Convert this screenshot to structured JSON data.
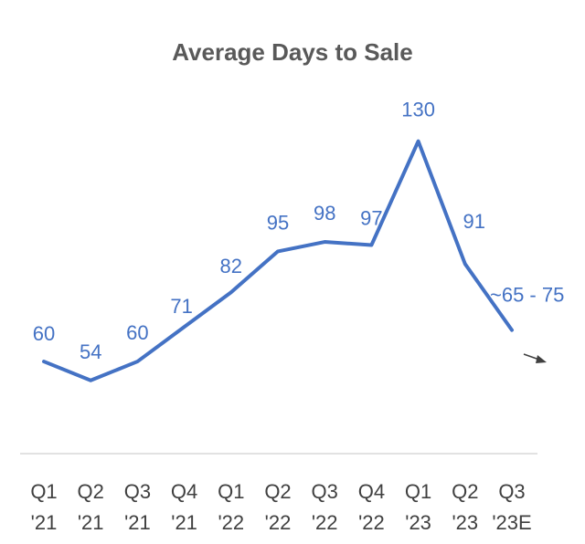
{
  "chart_data": {
    "type": "line",
    "title": "Average Days to Sale",
    "categories": [
      [
        "Q1",
        "'21"
      ],
      [
        "Q2",
        "'21"
      ],
      [
        "Q3",
        "'21"
      ],
      [
        "Q4",
        "'21"
      ],
      [
        "Q1",
        "'22"
      ],
      [
        "Q2",
        "'22"
      ],
      [
        "Q3",
        "'22"
      ],
      [
        "Q4",
        "'22"
      ],
      [
        "Q1",
        "'23"
      ],
      [
        "Q2",
        "'23"
      ],
      [
        "Q3",
        "'23E"
      ]
    ],
    "series": [
      {
        "name": "Average Days to Sale",
        "values": [
          60,
          54,
          60,
          71,
          82,
          95,
          98,
          97,
          130,
          91,
          70
        ],
        "labels": [
          "60",
          "54",
          "60",
          "71",
          "82",
          "95",
          "98",
          "97",
          "130",
          "91",
          "~65 - 75"
        ],
        "color": "#4472C4"
      }
    ],
    "annotation": {
      "type": "arrow",
      "direction": "down-right",
      "color": "#404040"
    },
    "ylim": [
      20,
      145
    ],
    "xlabel": "",
    "ylabel": "",
    "grid": false
  }
}
